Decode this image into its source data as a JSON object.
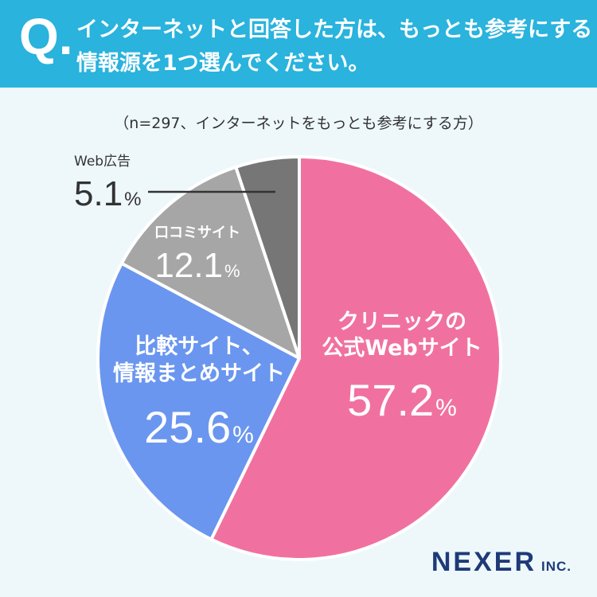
{
  "question": {
    "mark": "Q.",
    "line1": "インターネットと回答した方は、もっとも参考にする",
    "line2": "情報源を1つ選んでください。"
  },
  "sample_note": "（n=297、インターネットをもっとも参考にする方）",
  "logo": {
    "name": "NEXER",
    "suffix": "INC."
  },
  "colors": {
    "header": "#29b3dd",
    "background": "#eef8fb",
    "label_dark": "#333333"
  },
  "chart_data": {
    "type": "pie",
    "title": "インターネットと回答した方は、もっとも参考にする情報源を1つ選んでください。",
    "n": 297,
    "unit": "%",
    "slices": [
      {
        "label_lines": [
          "クリニックの",
          "公式Webサイト"
        ],
        "value": 57.2,
        "value_text": "57.2",
        "color": "#f0719f"
      },
      {
        "label_lines": [
          "比較サイト、",
          "情報まとめサイト"
        ],
        "value": 25.6,
        "value_text": "25.6",
        "color": "#6a96ef"
      },
      {
        "label_lines": [
          "口コミサイト"
        ],
        "value": 12.1,
        "value_text": "12.1",
        "color": "#a6a6a6"
      },
      {
        "label_lines": [
          "Web広告"
        ],
        "value": 5.1,
        "value_text": "5.1",
        "color": "#767676"
      }
    ]
  }
}
